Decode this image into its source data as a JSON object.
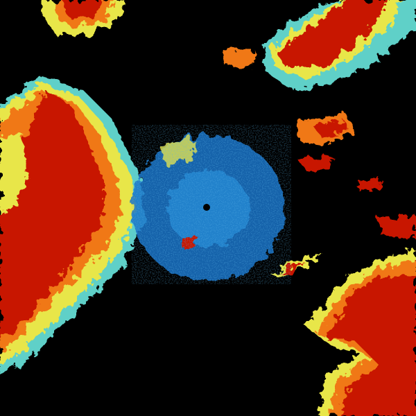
{
  "palette": {
    "background": "#000000",
    "clutter_blue": "#1a73c8",
    "light_cyan": "#5fd0c8",
    "yellow": "#e8e64a",
    "orange": "#f07818",
    "red": "#c81400",
    "dark_red": "#a00000"
  },
  "radar_site": {
    "marker": "radar-site-dot"
  }
}
